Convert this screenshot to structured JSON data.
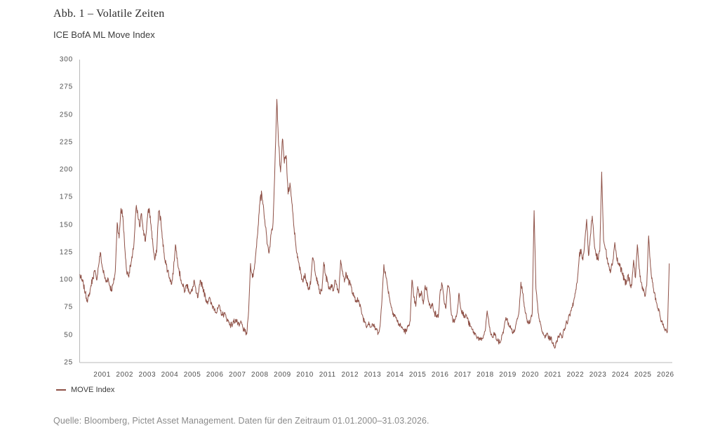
{
  "figure": {
    "title": "Abb. 1 – Volatile Zeiten",
    "subtitle": "ICE BofA ML Move Index",
    "source": "Quelle: Bloomberg, Pictet Asset Management. Daten für den Zeitraum 01.01.2000–31.03.2026."
  },
  "legend": {
    "items": [
      {
        "label": "MOVE Index",
        "color": "#8e5046"
      }
    ]
  },
  "colors": {
    "line": "#8e5046",
    "axis": "#b8b8b8",
    "tick_text": "#4f4f4f",
    "title_text": "#2e2e2e",
    "source_text": "#8a8a8a"
  },
  "chart_data": {
    "type": "line",
    "title": "ICE BofA ML Move Index",
    "xlabel": "",
    "ylabel": "",
    "grid": false,
    "legend_position": "bottom-left",
    "ylim": [
      25,
      300
    ],
    "xlim_years": [
      2000.0,
      2026.3
    ],
    "y_ticks": [
      25,
      50,
      75,
      100,
      125,
      150,
      175,
      200,
      225,
      250,
      275,
      300
    ],
    "x_ticks": [
      2001,
      2002,
      2003,
      2004,
      2005,
      2006,
      2007,
      2008,
      2009,
      2010,
      2011,
      2012,
      2013,
      2014,
      2015,
      2016,
      2017,
      2018,
      2019,
      2020,
      2021,
      2022,
      2023,
      2024,
      2025,
      2026
    ],
    "series": [
      {
        "name": "MOVE Index",
        "color": "#8e5046",
        "start": "2000-01",
        "end": "2026-03",
        "interval": "monthly",
        "values": [
          105,
          100,
          96,
          88,
          82,
          85,
          95,
          102,
          108,
          100,
          112,
          125,
          112,
          105,
          98,
          102,
          95,
          91,
          97,
          108,
          152,
          138,
          165,
          158,
          130,
          108,
          104,
          112,
          120,
          135,
          165,
          158,
          148,
          160,
          145,
          135,
          155,
          165,
          150,
          132,
          118,
          125,
          162,
          158,
          138,
          124,
          114,
          108,
          102,
          96,
          110,
          132,
          120,
          108,
          100,
          94,
          90,
          96,
          92,
          88,
          90,
          100,
          88,
          84,
          96,
          98,
          90,
          84,
          80,
          84,
          78,
          76,
          74,
          70,
          76,
          72,
          68,
          70,
          66,
          63,
          60,
          59,
          62,
          64,
          61,
          58,
          62,
          56,
          53,
          51,
          72,
          115,
          102,
          110,
          128,
          148,
          170,
          178,
          165,
          148,
          132,
          126,
          142,
          152,
          205,
          264,
          222,
          198,
          228,
          206,
          213,
          178,
          188,
          170,
          150,
          134,
          120,
          112,
          105,
          98,
          106,
          98,
          92,
          96,
          120,
          114,
          102,
          95,
          88,
          90,
          116,
          104,
          98,
          92,
          96,
          90,
          100,
          95,
          88,
          118,
          108,
          98,
          106,
          100,
          98,
          90,
          85,
          80,
          84,
          78,
          72,
          65,
          62,
          58,
          62,
          57,
          60,
          57,
          55,
          52,
          58,
          82,
          114,
          104,
          94,
          84,
          75,
          70,
          68,
          63,
          60,
          58,
          56,
          54,
          53,
          59,
          63,
          100,
          84,
          76,
          94,
          84,
          90,
          78,
          95,
          90,
          80,
          74,
          78,
          70,
          68,
          66,
          90,
          96,
          82,
          74,
          95,
          90,
          68,
          62,
          64,
          70,
          88,
          74,
          70,
          66,
          68,
          62,
          58,
          55,
          52,
          50,
          48,
          46,
          45,
          49,
          54,
          72,
          60,
          50,
          48,
          52,
          46,
          44,
          43,
          50,
          56,
          66,
          62,
          58,
          55,
          52,
          56,
          65,
          72,
          98,
          88,
          75,
          65,
          60,
          62,
          70,
          163,
          92,
          74,
          62,
          55,
          50,
          48,
          52,
          46,
          48,
          42,
          38,
          45,
          48,
          52,
          48,
          55,
          60,
          63,
          68,
          75,
          80,
          88,
          98,
          120,
          128,
          118,
          135,
          155,
          122,
          140,
          158,
          135,
          122,
          120,
          126,
          198,
          136,
          128,
          120,
          112,
          110,
          118,
          134,
          120,
          114,
          112,
          106,
          100,
          96,
          104,
          98,
          95,
          118,
          102,
          132,
          110,
          98,
          90,
          85,
          95,
          140,
          112,
          98,
          88,
          80,
          74,
          68,
          62,
          57,
          55,
          53,
          115
        ]
      }
    ]
  }
}
